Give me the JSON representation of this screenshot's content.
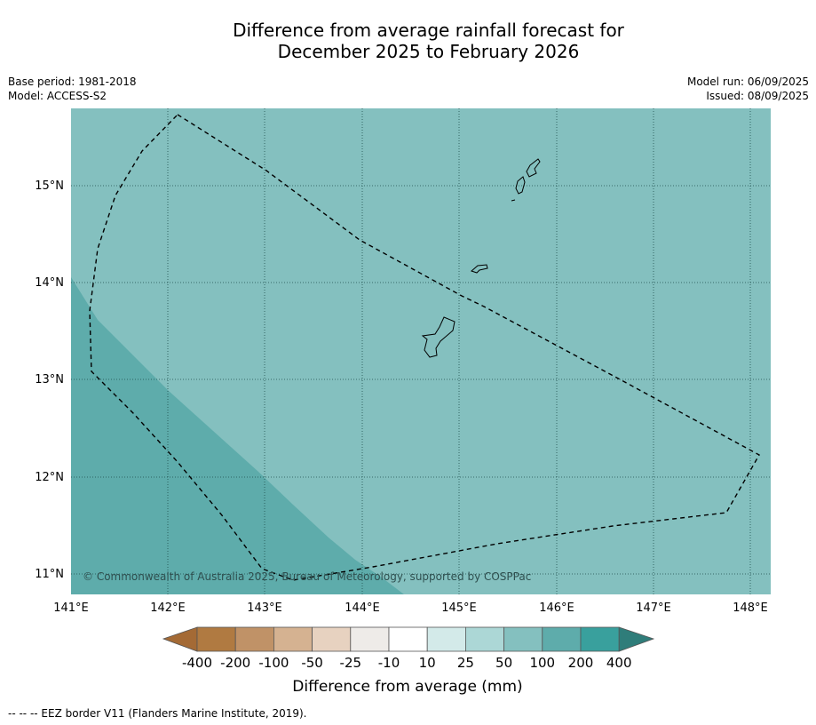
{
  "title": {
    "line1": "Difference from average rainfall forecast for",
    "line2": "December 2025 to February 2026"
  },
  "meta": {
    "base_period": "Base period: 1981-2018",
    "model": "Model: ACCESS-S2",
    "model_run": "Model run: 06/09/2025",
    "issued": "Issued: 08/09/2025"
  },
  "map": {
    "lon_labels": [
      "141°E",
      "142°E",
      "143°E",
      "144°E",
      "145°E",
      "146°E",
      "147°E",
      "148°E"
    ],
    "lat_labels": [
      "15°N",
      "14°N",
      "13°N",
      "12°N",
      "11°N"
    ],
    "copyright": "© Commonwealth of Australia 2025, Bureau of Meteorology, supported by COSPPac",
    "colors": {
      "band_50_100": "#84c0bf",
      "band_100_200": "#5eacab",
      "coastline": "#000000",
      "eez_border": "#000000"
    }
  },
  "legend": {
    "title": "Difference from average (mm)",
    "tick_labels": [
      "-400",
      "-200",
      "-100",
      "-50",
      "-25",
      "-10",
      "10",
      "25",
      "50",
      "100",
      "200",
      "400"
    ],
    "colors": [
      "#a46a35",
      "#b07a41",
      "#c09267",
      "#d5b291",
      "#e7d2c0",
      "#eeebe8",
      "#ffffff",
      "#d3eae9",
      "#acd7d6",
      "#84c0bf",
      "#5eacab",
      "#39a09d",
      "#2f7d7a"
    ]
  },
  "footnote": "--  --  -- EEZ border V11 (Flanders Marine Institute, 2019)."
}
